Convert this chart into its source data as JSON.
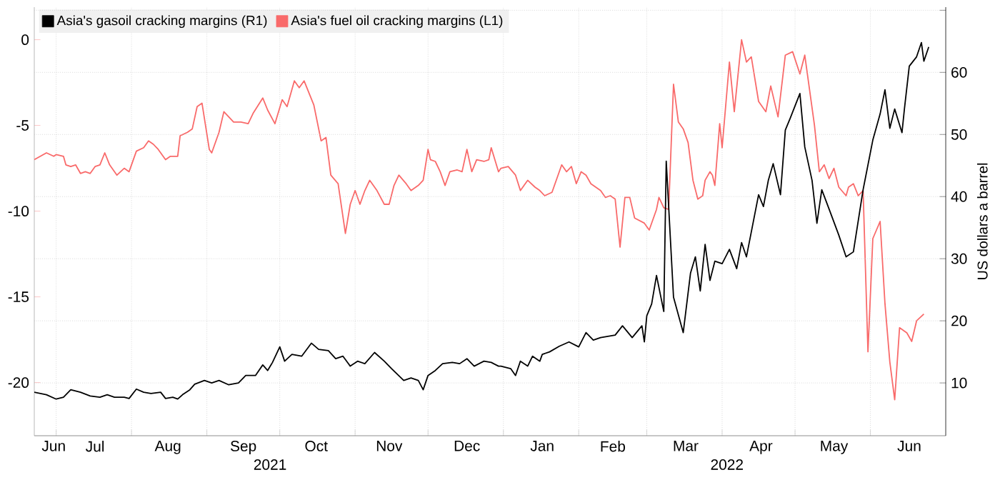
{
  "chart_data": {
    "type": "line",
    "y2label": "US dollars a barrel",
    "legend": "top left",
    "grid": true,
    "xlim": [
      "2021-06-22",
      "2022-07-02"
    ],
    "xticks": [
      {
        "value": "2021-07-01",
        "label": null
      },
      {
        "value": "2021-08-01",
        "label": null
      },
      {
        "value": "2021-09-01",
        "label": null
      },
      {
        "value": "2021-10-01",
        "label": null
      },
      {
        "value": "2021-11-01",
        "label": null
      },
      {
        "value": "2021-12-01",
        "label": null
      },
      {
        "value": "2022-01-01",
        "label": null
      },
      {
        "value": "2022-02-01",
        "label": null
      },
      {
        "value": "2022-03-01",
        "label": null
      },
      {
        "value": "2022-04-01",
        "label": null
      },
      {
        "value": "2022-05-01",
        "label": null
      },
      {
        "value": "2022-06-01",
        "label": null
      },
      {
        "value": "2021-06-30",
        "label": "Jun"
      },
      {
        "value": "2021-07-17",
        "label": "Jul"
      },
      {
        "value": "2021-08-16",
        "label": "Aug"
      },
      {
        "value": "2021-09-16",
        "label": "Sep"
      },
      {
        "value": "2021-10-16",
        "label": "Oct"
      },
      {
        "value": "2021-11-15",
        "label": "Nov"
      },
      {
        "value": "2021-12-17",
        "label": "Dec"
      },
      {
        "value": "2022-01-17",
        "label": "Jan"
      },
      {
        "value": "2022-02-15",
        "label": "Feb"
      },
      {
        "value": "2022-03-17",
        "label": "Mar"
      },
      {
        "value": "2022-04-17",
        "label": "Apr"
      },
      {
        "value": "2022-05-17",
        "label": "May"
      },
      {
        "value": "2022-06-17",
        "label": "Jun"
      }
    ],
    "x2lim": [
      "2021-06-22",
      "2022-07-02"
    ],
    "x2ticks": [
      {
        "value": "2021-09-27",
        "label": "2021"
      },
      {
        "value": "2022-04-03",
        "label": "2022"
      }
    ],
    "ylim": [
      -23.1,
      1.9
    ],
    "yticks": [
      -20,
      -15,
      -10,
      -5,
      0
    ],
    "y2lim": [
      1.5,
      70.5
    ],
    "y2ticks": [
      10,
      20,
      30,
      40,
      50,
      60,
      {
        "value": 70,
        "label": null
      }
    ],
    "series": [
      {
        "name": "Asia's gasoil cracking margins (R1)",
        "color": "#000000",
        "axis": "y2",
        "x": [
          "2021-06-22",
          "2021-06-27",
          "2021-07-01",
          "2021-07-04",
          "2021-07-07",
          "2021-07-11",
          "2021-07-15",
          "2021-07-19",
          "2021-07-22",
          "2021-07-25",
          "2021-07-29",
          "2021-07-31",
          "2021-08-03",
          "2021-08-06",
          "2021-08-09",
          "2021-08-13",
          "2021-08-15",
          "2021-08-18",
          "2021-08-20",
          "2021-08-22",
          "2021-08-25",
          "2021-08-27",
          "2021-08-31",
          "2021-09-03",
          "2021-09-06",
          "2021-09-10",
          "2021-09-14",
          "2021-09-17",
          "2021-09-21",
          "2021-09-24",
          "2021-09-26",
          "2021-09-28",
          "2021-10-01",
          "2021-10-03",
          "2021-10-06",
          "2021-10-10",
          "2021-10-14",
          "2021-10-17",
          "2021-10-21",
          "2021-10-24",
          "2021-10-27",
          "2021-10-30",
          "2021-11-02",
          "2021-11-05",
          "2021-11-09",
          "2021-11-13",
          "2021-11-16",
          "2021-11-21",
          "2021-11-24",
          "2021-11-27",
          "2021-11-29",
          "2021-12-01",
          "2021-12-04",
          "2021-12-07",
          "2021-12-11",
          "2021-12-14",
          "2021-12-17",
          "2021-12-20",
          "2021-12-24",
          "2021-12-27",
          "2021-12-30",
          "2021-12-31",
          "2022-01-04",
          "2022-01-06",
          "2022-01-08",
          "2022-01-11",
          "2022-01-13",
          "2022-01-16",
          "2022-01-17",
          "2022-01-20",
          "2022-01-24",
          "2022-01-28",
          "2022-02-01",
          "2022-02-04",
          "2022-02-07",
          "2022-02-10",
          "2022-02-16",
          "2022-02-19",
          "2022-02-23",
          "2022-02-27",
          "2022-02-28",
          "2022-03-01",
          "2022-03-03",
          "2022-03-05",
          "2022-03-08",
          "2022-03-09",
          "2022-03-12",
          "2022-03-16",
          "2022-03-19",
          "2022-03-21",
          "2022-03-23",
          "2022-03-25",
          "2022-03-27",
          "2022-03-29",
          "2022-04-01",
          "2022-04-04",
          "2022-04-07",
          "2022-04-09",
          "2022-04-11",
          "2022-04-16",
          "2022-04-18",
          "2022-04-20",
          "2022-04-22",
          "2022-04-25",
          "2022-04-27",
          "2022-04-29",
          "2022-05-03",
          "2022-05-05",
          "2022-05-08",
          "2022-05-10",
          "2022-05-12",
          "2022-05-15",
          "2022-05-19",
          "2022-05-22",
          "2022-05-25",
          "2022-05-29",
          "2022-06-02",
          "2022-06-05",
          "2022-06-07",
          "2022-06-09",
          "2022-06-11",
          "2022-06-14",
          "2022-06-15",
          "2022-06-17",
          "2022-06-20",
          "2022-06-22",
          "2022-06-23",
          "2022-06-25"
        ],
        "values": [
          8.5,
          8.1,
          7.4,
          7.7,
          8.9,
          8.5,
          7.9,
          7.7,
          8.1,
          7.7,
          7.7,
          7.5,
          9.0,
          8.5,
          8.3,
          8.5,
          7.5,
          7.7,
          7.4,
          8.1,
          8.9,
          9.8,
          10.4,
          10.0,
          10.4,
          9.7,
          10.0,
          11.2,
          11.2,
          12.9,
          12.0,
          13.3,
          15.8,
          13.5,
          14.6,
          14.3,
          16.4,
          15.4,
          15.2,
          13.9,
          14.3,
          12.7,
          13.5,
          13.1,
          14.9,
          13.5,
          12.3,
          10.4,
          10.8,
          10.4,
          8.9,
          11.2,
          12.0,
          13.1,
          13.3,
          13.1,
          13.9,
          12.7,
          13.5,
          13.3,
          12.7,
          12.7,
          12.3,
          11.2,
          13.5,
          12.7,
          14.3,
          13.5,
          14.6,
          15.0,
          15.9,
          16.6,
          15.8,
          18.1,
          16.9,
          17.3,
          17.7,
          19.2,
          17.3,
          19.2,
          16.6,
          20.8,
          22.7,
          27.3,
          21.5,
          45.7,
          23.8,
          18.1,
          27.7,
          30.3,
          24.8,
          32.3,
          26.5,
          29.6,
          29.2,
          31.5,
          28.4,
          32.6,
          30.3,
          40.3,
          38.4,
          42.6,
          45.3,
          40.3,
          50.7,
          52.6,
          56.6,
          48.0,
          42.6,
          35.7,
          41.1,
          38.0,
          33.8,
          30.3,
          31.1,
          41.1,
          49.1,
          53.3,
          57.2,
          51.0,
          54.1,
          50.3,
          54.1,
          61.0,
          62.5,
          64.8,
          61.8,
          64.1
        ]
      },
      {
        "name": "Asia's fuel oil cracking margins (L1)",
        "color": "#f96a6a",
        "x": [
          "2021-06-22",
          "2021-06-27",
          "2021-06-30",
          "2021-07-01",
          "2021-07-04",
          "2021-07-05",
          "2021-07-07",
          "2021-07-09",
          "2021-07-11",
          "2021-07-13",
          "2021-07-15",
          "2021-07-17",
          "2021-07-19",
          "2021-07-21",
          "2021-07-23",
          "2021-07-26",
          "2021-07-29",
          "2021-07-31",
          "2021-08-03",
          "2021-08-06",
          "2021-08-08",
          "2021-08-10",
          "2021-08-12",
          "2021-08-15",
          "2021-08-17",
          "2021-08-20",
          "2021-08-21",
          "2021-08-24",
          "2021-08-26",
          "2021-08-28",
          "2021-08-30",
          "2021-09-02",
          "2021-09-03",
          "2021-09-06",
          "2021-09-08",
          "2021-09-12",
          "2021-09-15",
          "2021-09-18",
          "2021-09-20",
          "2021-09-24",
          "2021-09-26",
          "2021-09-29",
          "2021-10-02",
          "2021-10-04",
          "2021-10-07",
          "2021-10-09",
          "2021-10-11",
          "2021-10-15",
          "2021-10-18",
          "2021-10-20",
          "2021-10-22",
          "2021-10-25",
          "2021-10-28",
          "2021-10-30",
          "2021-11-01",
          "2021-11-03",
          "2021-11-05",
          "2021-11-07",
          "2021-11-10",
          "2021-11-13",
          "2021-11-15",
          "2021-11-17",
          "2021-11-19",
          "2021-11-22",
          "2021-11-24",
          "2021-11-27",
          "2021-11-29",
          "2021-12-01",
          "2021-12-02",
          "2021-12-04",
          "2021-12-06",
          "2021-12-08",
          "2021-12-10",
          "2021-12-13",
          "2021-12-15",
          "2021-12-17",
          "2021-12-19",
          "2021-12-21",
          "2021-12-24",
          "2021-12-26",
          "2021-12-27",
          "2021-12-30",
          "2021-12-31",
          "2022-01-03",
          "2022-01-06",
          "2022-01-08",
          "2022-01-11",
          "2022-01-14",
          "2022-01-16",
          "2022-01-18",
          "2022-01-21",
          "2022-01-23",
          "2022-01-25",
          "2022-01-27",
          "2022-01-29",
          "2022-01-31",
          "2022-02-02",
          "2022-02-04",
          "2022-02-06",
          "2022-02-08",
          "2022-02-10",
          "2022-02-12",
          "2022-02-14",
          "2022-02-16",
          "2022-02-18",
          "2022-02-20",
          "2022-02-22",
          "2022-02-24",
          "2022-02-28",
          "2022-03-02",
          "2022-03-05",
          "2022-03-06",
          "2022-03-08",
          "2022-03-10",
          "2022-03-12",
          "2022-03-14",
          "2022-03-16",
          "2022-03-18",
          "2022-03-20",
          "2022-03-22",
          "2022-03-24",
          "2022-03-25",
          "2022-03-27",
          "2022-03-28",
          "2022-03-29",
          "2022-03-31",
          "2022-04-01",
          "2022-04-04",
          "2022-04-06",
          "2022-04-09",
          "2022-04-11",
          "2022-04-13",
          "2022-04-16",
          "2022-04-19",
          "2022-04-21",
          "2022-04-24",
          "2022-04-27",
          "2022-04-30",
          "2022-05-03",
          "2022-05-05",
          "2022-05-09",
          "2022-05-11",
          "2022-05-13",
          "2022-05-15",
          "2022-05-17",
          "2022-05-19",
          "2022-05-22",
          "2022-05-23",
          "2022-05-25",
          "2022-05-27",
          "2022-05-29",
          "2022-05-31",
          "2022-06-02",
          "2022-06-05",
          "2022-06-07",
          "2022-06-09",
          "2022-06-11",
          "2022-06-13",
          "2022-06-16",
          "2022-06-18",
          "2022-06-20",
          "2022-06-23"
        ],
        "values": [
          -7.0,
          -6.6,
          -6.8,
          -6.7,
          -6.8,
          -7.3,
          -7.4,
          -7.3,
          -7.8,
          -7.7,
          -7.8,
          -7.4,
          -7.3,
          -6.6,
          -7.3,
          -7.9,
          -7.5,
          -7.7,
          -6.5,
          -6.3,
          -5.9,
          -6.1,
          -6.4,
          -7.0,
          -6.8,
          -6.8,
          -5.6,
          -5.4,
          -5.2,
          -3.9,
          -3.7,
          -6.4,
          -6.6,
          -5.4,
          -4.2,
          -4.8,
          -4.8,
          -4.9,
          -4.3,
          -3.4,
          -4.1,
          -4.9,
          -3.5,
          -3.9,
          -2.4,
          -2.8,
          -2.4,
          -3.8,
          -5.9,
          -5.7,
          -7.9,
          -8.4,
          -11.3,
          -9.6,
          -8.8,
          -9.6,
          -8.8,
          -8.2,
          -8.8,
          -9.6,
          -9.6,
          -8.5,
          -7.9,
          -8.4,
          -8.8,
          -8.5,
          -8.2,
          -6.4,
          -7.0,
          -7.1,
          -7.7,
          -8.5,
          -7.7,
          -7.6,
          -7.7,
          -6.4,
          -7.7,
          -7.0,
          -7.1,
          -7.0,
          -6.3,
          -7.7,
          -7.5,
          -7.4,
          -7.9,
          -8.8,
          -8.2,
          -8.6,
          -8.8,
          -9.1,
          -8.9,
          -8.1,
          -7.3,
          -7.7,
          -7.4,
          -8.4,
          -7.7,
          -7.9,
          -8.4,
          -8.6,
          -8.8,
          -9.2,
          -9.1,
          -9.3,
          -12.1,
          -9.2,
          -9.2,
          -10.4,
          -10.7,
          -11.1,
          -9.9,
          -9.2,
          -9.8,
          -9.9,
          -2.6,
          -4.8,
          -5.2,
          -6.0,
          -8.2,
          -9.3,
          -9.1,
          -8.2,
          -7.7,
          -7.9,
          -8.5,
          -4.9,
          -6.3,
          -1.3,
          -4.2,
          0.0,
          -1.3,
          -1.0,
          -3.6,
          -4.2,
          -2.7,
          -4.5,
          -0.9,
          -0.7,
          -2.0,
          -0.9,
          -5.0,
          -7.7,
          -7.3,
          -8.1,
          -7.5,
          -8.6,
          -9.1,
          -8.6,
          -8.4,
          -9.1,
          -8.8,
          -18.2,
          -11.6,
          -10.6,
          -15.4,
          -18.8,
          -21.0,
          -16.8,
          -17.1,
          -17.6,
          -16.4,
          -16.0
        ]
      }
    ]
  }
}
